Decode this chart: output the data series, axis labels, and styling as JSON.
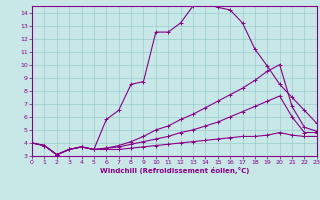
{
  "xlabel": "Windchill (Refroidissement éolien,°C)",
  "bg_color": "#c8e8e8",
  "line_color": "#880088",
  "grid_color": "#99cccc",
  "xlim": [
    0,
    23
  ],
  "ylim": [
    3,
    14.5
  ],
  "yticks": [
    3,
    4,
    5,
    6,
    7,
    8,
    9,
    10,
    11,
    12,
    13,
    14
  ],
  "xticks": [
    0,
    1,
    2,
    3,
    4,
    5,
    6,
    7,
    8,
    9,
    10,
    11,
    12,
    13,
    14,
    15,
    16,
    17,
    18,
    19,
    20,
    21,
    22,
    23
  ],
  "lines": [
    {
      "x": [
        0,
        1,
        2,
        3,
        4,
        5,
        6,
        7,
        8,
        9,
        10,
        11,
        12,
        13,
        14,
        15,
        16,
        17,
        18,
        19,
        20,
        21,
        22,
        23
      ],
      "y": [
        4.0,
        3.8,
        3.1,
        3.5,
        3.7,
        3.5,
        5.8,
        6.5,
        8.5,
        8.7,
        12.5,
        12.5,
        13.2,
        14.5,
        14.7,
        14.4,
        14.2,
        13.2,
        11.2,
        9.9,
        8.5,
        7.5,
        6.5,
        5.5
      ]
    },
    {
      "x": [
        0,
        1,
        2,
        3,
        4,
        5,
        6,
        7,
        8,
        9,
        10,
        11,
        12,
        13,
        14,
        15,
        16,
        17,
        18,
        19,
        20,
        21,
        22,
        23
      ],
      "y": [
        4.0,
        3.8,
        3.1,
        3.5,
        3.7,
        3.5,
        3.6,
        3.8,
        4.1,
        4.5,
        5.0,
        5.3,
        5.8,
        6.2,
        6.7,
        7.2,
        7.7,
        8.2,
        8.8,
        9.5,
        10.0,
        6.8,
        5.2,
        4.9
      ]
    },
    {
      "x": [
        0,
        1,
        2,
        3,
        4,
        5,
        6,
        7,
        8,
        9,
        10,
        11,
        12,
        13,
        14,
        15,
        16,
        17,
        18,
        19,
        20,
        21,
        22,
        23
      ],
      "y": [
        4.0,
        3.8,
        3.1,
        3.5,
        3.7,
        3.5,
        3.6,
        3.7,
        3.9,
        4.1,
        4.3,
        4.5,
        4.8,
        5.0,
        5.3,
        5.6,
        6.0,
        6.4,
        6.8,
        7.2,
        7.6,
        6.0,
        4.8,
        4.8
      ]
    },
    {
      "x": [
        0,
        1,
        2,
        3,
        4,
        5,
        6,
        7,
        8,
        9,
        10,
        11,
        12,
        13,
        14,
        15,
        16,
        17,
        18,
        19,
        20,
        21,
        22,
        23
      ],
      "y": [
        4.0,
        3.8,
        3.1,
        3.5,
        3.7,
        3.5,
        3.5,
        3.5,
        3.6,
        3.7,
        3.8,
        3.9,
        4.0,
        4.1,
        4.2,
        4.3,
        4.4,
        4.5,
        4.5,
        4.6,
        4.8,
        4.6,
        4.5,
        4.5
      ]
    }
  ]
}
